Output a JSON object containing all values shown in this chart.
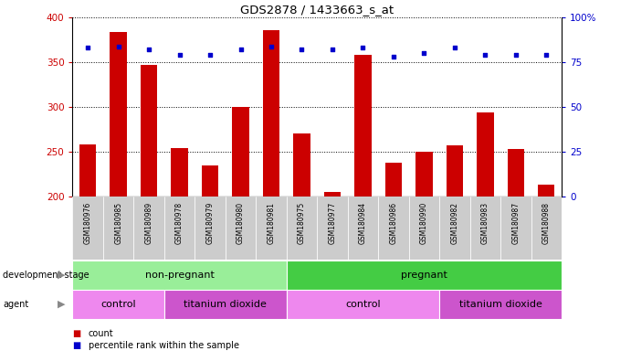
{
  "title": "GDS2878 / 1433663_s_at",
  "samples": [
    "GSM180976",
    "GSM180985",
    "GSM180989",
    "GSM180978",
    "GSM180979",
    "GSM180980",
    "GSM180981",
    "GSM180975",
    "GSM180977",
    "GSM180984",
    "GSM180986",
    "GSM180990",
    "GSM180982",
    "GSM180983",
    "GSM180987",
    "GSM180988"
  ],
  "counts": [
    258,
    384,
    347,
    254,
    235,
    300,
    386,
    270,
    205,
    358,
    238,
    250,
    257,
    294,
    253,
    213
  ],
  "percentile_ranks": [
    83,
    84,
    82,
    79,
    79,
    82,
    84,
    82,
    82,
    83,
    78,
    80,
    83,
    79,
    79,
    79
  ],
  "ylim_left": [
    200,
    400
  ],
  "ylim_right": [
    0,
    100
  ],
  "yticks_left": [
    200,
    250,
    300,
    350,
    400
  ],
  "yticks_right": [
    0,
    25,
    50,
    75,
    100
  ],
  "bar_color": "#cc0000",
  "dot_color": "#0000cc",
  "bar_bottom": 200,
  "groups": {
    "development_stage": [
      {
        "label": "non-pregnant",
        "start": 0,
        "end": 7,
        "color": "#99ee99"
      },
      {
        "label": "pregnant",
        "start": 7,
        "end": 16,
        "color": "#44cc44"
      }
    ],
    "agent": [
      {
        "label": "control",
        "start": 0,
        "end": 3,
        "color": "#ee88ee"
      },
      {
        "label": "titanium dioxide",
        "start": 3,
        "end": 7,
        "color": "#cc55cc"
      },
      {
        "label": "control",
        "start": 7,
        "end": 12,
        "color": "#ee88ee"
      },
      {
        "label": "titanium dioxide",
        "start": 12,
        "end": 16,
        "color": "#cc55cc"
      }
    ]
  },
  "legend_items": [
    {
      "label": "count",
      "color": "#cc0000"
    },
    {
      "label": "percentile rank within the sample",
      "color": "#0000cc"
    }
  ],
  "background_color": "#ffffff",
  "tick_label_color_left": "#cc0000",
  "tick_label_color_right": "#0000cc",
  "xticklabel_bg": "#cccccc",
  "n_samples": 16
}
